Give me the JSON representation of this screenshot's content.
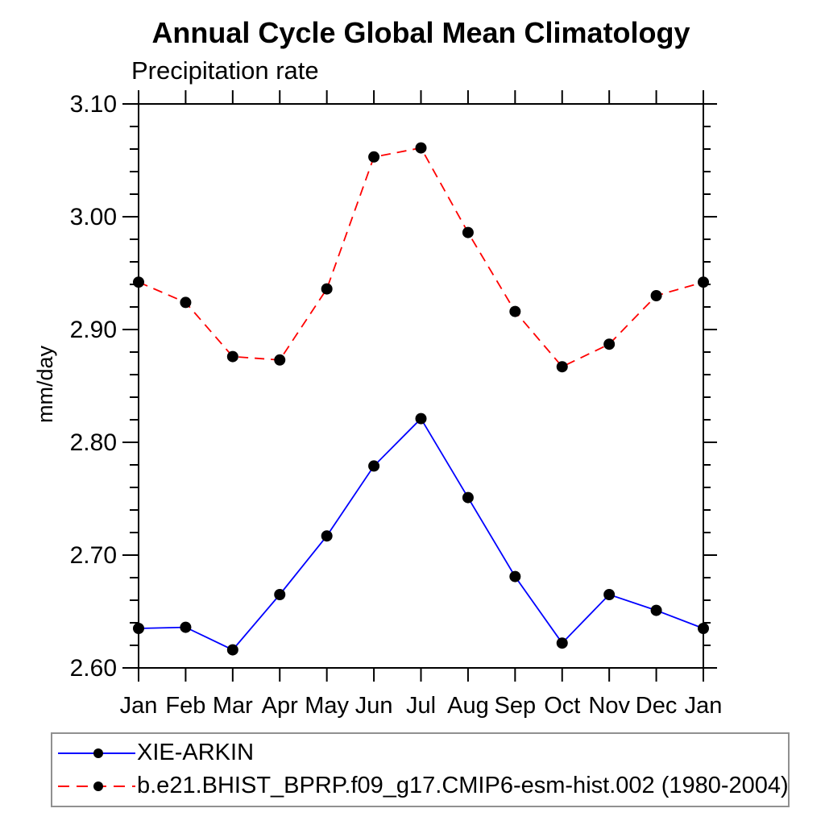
{
  "title": "Annual Cycle Global Mean Climatology",
  "subtitle": "Precipitation rate",
  "ylabel": "mm/day",
  "colors": {
    "obs_line": "#0000ff",
    "model_line": "#ff0000",
    "marker": "#000000",
    "axis": "#000000",
    "legend_border": "#909090"
  },
  "chart_data": {
    "type": "line",
    "categories": [
      "Jan",
      "Feb",
      "Mar",
      "Apr",
      "May",
      "Jun",
      "Jul",
      "Aug",
      "Sep",
      "Oct",
      "Nov",
      "Dec",
      "Jan"
    ],
    "xlabel": "",
    "ylabel": "mm/day",
    "ylim": [
      2.6,
      3.1
    ],
    "ytick_major_step": 0.1,
    "ytick_minor_step": 0.02,
    "ytick_labels": [
      "2.60",
      "2.70",
      "2.80",
      "2.90",
      "3.00",
      "3.10"
    ],
    "grid": false,
    "legend_position": "bottom",
    "series": [
      {
        "name": "XIE-ARKIN",
        "color": "#0000ff",
        "line_style": "solid",
        "marker": "circle",
        "marker_color": "#000000",
        "values": [
          2.635,
          2.636,
          2.616,
          2.665,
          2.717,
          2.779,
          2.821,
          2.751,
          2.681,
          2.622,
          2.665,
          2.651,
          2.635
        ]
      },
      {
        "name": "b.e21.BHIST_BPRP.f09_g17.CMIP6-esm-hist.002 (1980-2004)",
        "color": "#ff0000",
        "line_style": "dashed",
        "marker": "circle",
        "marker_color": "#000000",
        "values": [
          2.942,
          2.924,
          2.876,
          2.873,
          2.936,
          3.053,
          3.061,
          2.986,
          2.916,
          2.867,
          2.887,
          2.93,
          2.942
        ]
      }
    ]
  }
}
